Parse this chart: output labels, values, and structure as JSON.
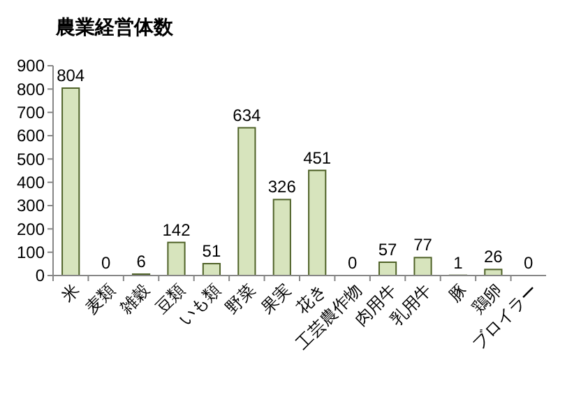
{
  "chart_data": {
    "type": "bar",
    "title": "農業経営体数",
    "categories": [
      "米",
      "麦類",
      "雑穀",
      "豆類",
      "いも類",
      "野菜",
      "果実",
      "花き",
      "工芸農作物",
      "肉用牛",
      "乳用牛",
      "豚",
      "鶏卵",
      "ブロイラー"
    ],
    "values": [
      804,
      0,
      6,
      142,
      51,
      634,
      326,
      451,
      0,
      57,
      77,
      1,
      26,
      0
    ],
    "color": "#d7e4bd",
    "ylim": [
      0,
      900
    ],
    "yticks": [
      0,
      100,
      200,
      300,
      400,
      500,
      600,
      700,
      800,
      900
    ],
    "data_labels": true,
    "grid": false
  }
}
